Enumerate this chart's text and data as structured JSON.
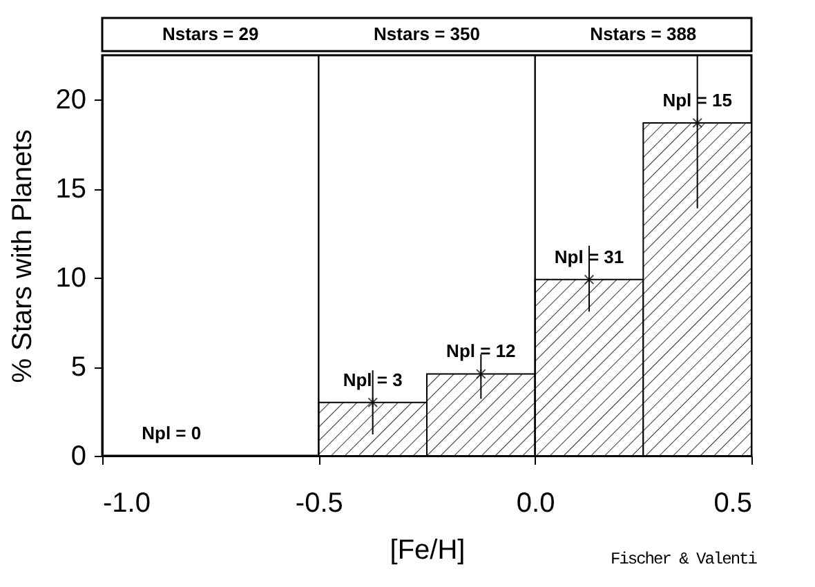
{
  "chart_data": {
    "type": "histogram",
    "xlabel": "[Fe/H]",
    "ylabel": "% Stars with Planets",
    "bins": [
      -1.0,
      -0.5,
      -0.25,
      0.0,
      0.25,
      0.5
    ],
    "values": [
      0,
      3.0,
      4.6,
      9.9,
      18.7
    ],
    "errors": [
      null,
      [
        1.2,
        4.8
      ],
      [
        3.2,
        5.7
      ],
      [
        8.1,
        11.8
      ],
      [
        13.9,
        22.5
      ]
    ],
    "color": "#000000",
    "marker": "cross",
    "grid": false,
    "xlim": [
      -1.0,
      0.5
    ],
    "xticks": [
      {
        "value": -1.0,
        "label": "-1.0"
      },
      {
        "value": -0.5,
        "label": "-0.5"
      },
      {
        "value": 0.0,
        "label": "0.0"
      },
      {
        "value": 0.5,
        "label": "0.5"
      }
    ],
    "ylim": [
      0,
      22.5
    ],
    "yticks": [
      0,
      5,
      10,
      15,
      20
    ],
    "ref_lines": [
      {
        "axis": "x",
        "value": -0.5
      },
      {
        "axis": "x",
        "value": 0.0
      }
    ],
    "annotations": [
      "Nstars = 29",
      "Nstars = 350",
      "Nstars = 388",
      {
        "text": "Npl = 0",
        "x": -0.84,
        "y": 0
      },
      {
        "text": "Npl = 3",
        "x": -0.375,
        "y": 3.0
      },
      {
        "text": "Npl = 12",
        "x": -0.125,
        "y": 4.6
      },
      {
        "text": "Npl = 31",
        "x": 0.125,
        "y": 9.9
      },
      {
        "text": "Npl = 15",
        "x": 0.375,
        "y": 18.7
      },
      "Fischer & Valenti"
    ]
  }
}
